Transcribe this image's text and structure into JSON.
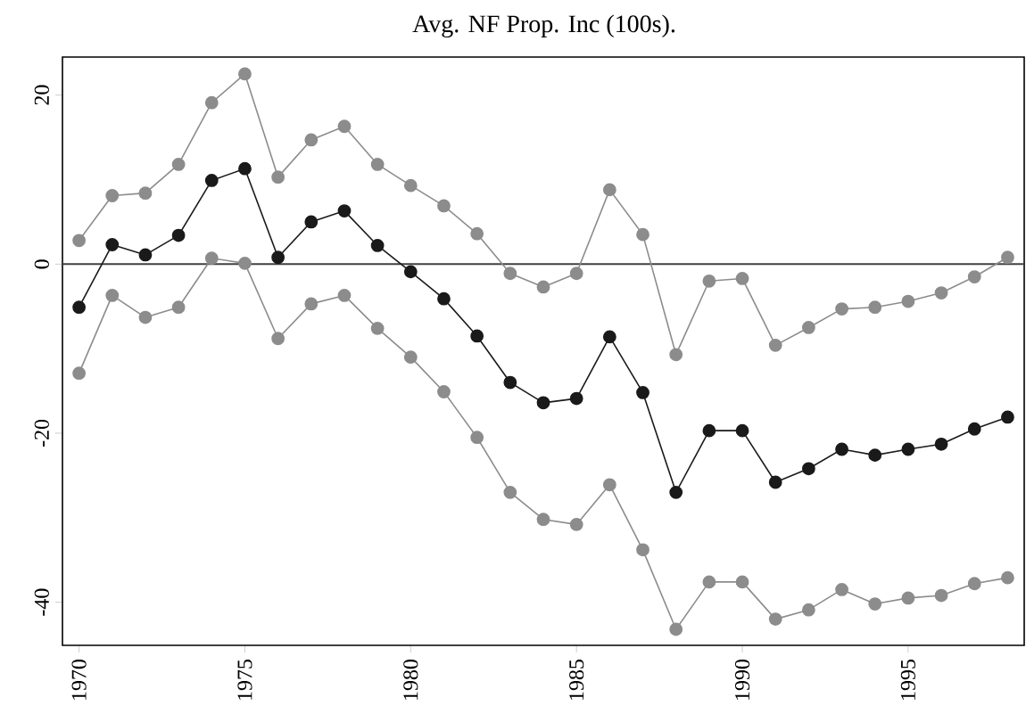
{
  "chart_data": {
    "type": "line",
    "title": "Avg. NF Prop. Inc (100s).",
    "x": [
      1970,
      1971,
      1972,
      1973,
      1974,
      1975,
      1976,
      1977,
      1978,
      1979,
      1980,
      1981,
      1982,
      1983,
      1984,
      1985,
      1986,
      1987,
      1988,
      1989,
      1990,
      1991,
      1992,
      1993,
      1994,
      1995,
      1996,
      1997,
      1998
    ],
    "series": [
      {
        "color": "#8c8c8c",
        "values": [
          2.8,
          8.1,
          8.4,
          11.8,
          19.1,
          22.5,
          10.3,
          14.7,
          16.3,
          11.8,
          9.3,
          6.9,
          3.6,
          -1.1,
          -2.7,
          -1.1,
          8.8,
          3.5,
          -10.7,
          -2.0,
          -1.7,
          -9.6,
          -7.5,
          -5.3,
          -5.1,
          -4.4,
          -3.4,
          -1.5,
          0.8
        ]
      },
      {
        "color": "#8c8c8c",
        "values": [
          -12.9,
          -3.7,
          -6.3,
          -5.1,
          0.7,
          0.1,
          -8.8,
          -4.7,
          -3.7,
          -7.6,
          -11.0,
          -15.1,
          -20.5,
          -27.0,
          -30.2,
          -30.8,
          -26.1,
          -33.8,
          -43.2,
          -37.6,
          -37.6,
          -42.0,
          -40.9,
          -38.5,
          -40.2,
          -39.5,
          -39.2,
          -37.8,
          -37.1
        ]
      },
      {
        "color": "#1a1a1a",
        "values": [
          -5.1,
          2.3,
          1.1,
          3.4,
          9.9,
          11.3,
          0.8,
          5.0,
          6.3,
          2.2,
          -0.9,
          -4.1,
          -8.5,
          -14.0,
          -16.4,
          -15.9,
          -8.6,
          -15.2,
          -27.0,
          -19.7,
          -19.7,
          -25.8,
          -24.2,
          -21.9,
          -22.6,
          -21.9,
          -21.3,
          -19.5,
          -18.1
        ]
      }
    ],
    "xlim": [
      1969.5,
      1998.5
    ],
    "ylim": [
      -45.1,
      24.5
    ],
    "xticks": [
      1970,
      1975,
      1980,
      1985,
      1990,
      1995
    ],
    "yticks": [
      -40,
      -20,
      0,
      20
    ],
    "ref_lines": [
      {
        "axis": "y",
        "value": 0,
        "color": "#404040"
      }
    ],
    "marker": "circle",
    "line_style": "solid"
  }
}
